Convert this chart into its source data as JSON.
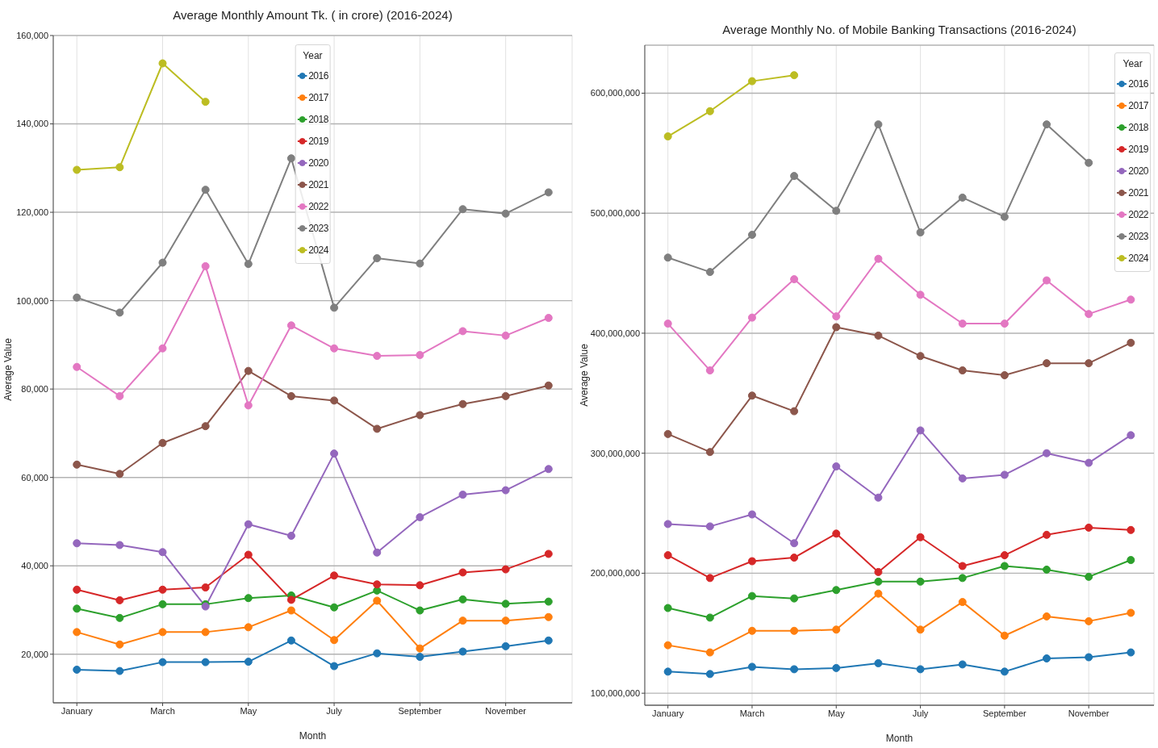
{
  "chart_data": [
    {
      "type": "line",
      "title": "Average Monthly Amount Tk. ( in crore) (2016-2024)",
      "xlabel": "Month",
      "ylabel": "Average Value",
      "legend_title": "Year",
      "categories": [
        "January",
        null,
        "March",
        null,
        "May",
        null,
        "July",
        null,
        "September",
        null,
        "November",
        null
      ],
      "ylim": [
        9000,
        160000
      ],
      "yticks": [
        {
          "value": 20000,
          "label": "20,000"
        },
        {
          "value": 40000,
          "label": "40,000"
        },
        {
          "value": 60000,
          "label": "60,000"
        },
        {
          "value": 80000,
          "label": "80,000"
        },
        {
          "value": 100000,
          "label": "100,000"
        },
        {
          "value": 120000,
          "label": "120,000"
        },
        {
          "value": 140000,
          "label": "140,000"
        },
        {
          "value": 160000,
          "label": "160,000"
        }
      ],
      "grid": true,
      "legend": "top",
      "marker": "circle",
      "line_style": "solid",
      "series": [
        {
          "name": "2016",
          "color": "#1f77b4",
          "values": [
            16500,
            16200,
            18200,
            18200,
            18300,
            23100,
            17300,
            20200,
            19400,
            20600,
            21800,
            23100
          ]
        },
        {
          "name": "2017",
          "color": "#ff7f0e",
          "values": [
            25000,
            22200,
            25000,
            25000,
            26100,
            29900,
            23200,
            32100,
            21300,
            27600,
            27600,
            28400
          ]
        },
        {
          "name": "2018",
          "color": "#2ca02c",
          "values": [
            30300,
            28200,
            31300,
            31300,
            32700,
            33300,
            30600,
            34400,
            29900,
            32400,
            31400,
            31900
          ]
        },
        {
          "name": "2019",
          "color": "#d62728",
          "values": [
            34600,
            32200,
            34600,
            35100,
            42500,
            32300,
            37800,
            35800,
            35600,
            38500,
            39200,
            42700
          ]
        },
        {
          "name": "2020",
          "color": "#9467bd",
          "values": [
            45100,
            44700,
            43100,
            30800,
            49400,
            46800,
            65400,
            43000,
            51000,
            56100,
            57100,
            61900
          ]
        },
        {
          "name": "2021",
          "color": "#8c564b",
          "values": [
            62900,
            60800,
            67800,
            71600,
            84100,
            78400,
            77400,
            71000,
            74100,
            76600,
            78400,
            80800
          ]
        },
        {
          "name": "2022",
          "color": "#e377c2",
          "values": [
            85000,
            78400,
            89200,
            107800,
            76300,
            94400,
            89200,
            87500,
            87700,
            93100,
            92100,
            96100
          ]
        },
        {
          "name": "2023",
          "color": "#7f7f7f",
          "values": [
            100700,
            97300,
            108600,
            125100,
            108300,
            132200,
            98400,
            109600,
            108400,
            120700,
            119700,
            124500
          ]
        },
        {
          "name": "2024",
          "color": "#bcbd22",
          "values": [
            129600,
            130200,
            153700,
            145000,
            null,
            null,
            null,
            null,
            null,
            null,
            null,
            null
          ]
        }
      ]
    },
    {
      "type": "line",
      "title": "Average Monthly No. of Mobile Banking Transactions (2016-2024)",
      "xlabel": "Month",
      "ylabel": "Average Value",
      "legend_title": "Year",
      "categories": [
        "January",
        null,
        "March",
        null,
        "May",
        null,
        "July",
        null,
        "September",
        null,
        "November",
        null
      ],
      "ylim": [
        90000000,
        640000000
      ],
      "yticks": [
        {
          "value": 100000000,
          "label": "100,000,000"
        },
        {
          "value": 200000000,
          "label": "200,000,000"
        },
        {
          "value": 300000000,
          "label": "300,000,000"
        },
        {
          "value": 400000000,
          "label": "400,000,000"
        },
        {
          "value": 500000000,
          "label": "500,000,000"
        },
        {
          "value": 600000000,
          "label": "600,000,000"
        }
      ],
      "grid": true,
      "legend": "top right",
      "marker": "circle",
      "line_style": "solid",
      "series": [
        {
          "name": "2016",
          "color": "#1f77b4",
          "values": [
            118000000,
            116000000,
            122000000,
            120000000,
            121000000,
            125000000,
            120000000,
            124000000,
            118000000,
            129000000,
            130000000,
            134000000
          ]
        },
        {
          "name": "2017",
          "color": "#ff7f0e",
          "values": [
            140000000,
            134000000,
            152000000,
            152000000,
            153000000,
            183000000,
            153000000,
            176000000,
            148000000,
            164000000,
            160000000,
            167000000
          ]
        },
        {
          "name": "2018",
          "color": "#2ca02c",
          "values": [
            171000000,
            163000000,
            181000000,
            179000000,
            186000000,
            193000000,
            193000000,
            196000000,
            206000000,
            203000000,
            197000000,
            211000000
          ]
        },
        {
          "name": "2019",
          "color": "#d62728",
          "values": [
            215000000,
            196000000,
            210000000,
            213000000,
            233000000,
            201000000,
            230000000,
            206000000,
            215000000,
            232000000,
            238000000,
            236000000
          ]
        },
        {
          "name": "2020",
          "color": "#9467bd",
          "values": [
            241000000,
            239000000,
            249000000,
            225000000,
            289000000,
            263000000,
            319000000,
            279000000,
            282000000,
            300000000,
            292000000,
            315000000
          ]
        },
        {
          "name": "2021",
          "color": "#8c564b",
          "values": [
            316000000,
            301000000,
            348000000,
            335000000,
            405000000,
            398000000,
            381000000,
            369000000,
            365000000,
            375000000,
            375000000,
            392000000
          ]
        },
        {
          "name": "2022",
          "color": "#e377c2",
          "values": [
            408000000,
            369000000,
            413000000,
            445000000,
            414000000,
            462000000,
            432000000,
            408000000,
            408000000,
            444000000,
            416000000,
            428000000
          ]
        },
        {
          "name": "2023",
          "color": "#7f7f7f",
          "values": [
            463000000,
            451000000,
            482000000,
            531000000,
            502000000,
            574000000,
            484000000,
            513000000,
            497000000,
            574000000,
            542000000,
            null
          ]
        },
        {
          "name": "2024",
          "color": "#bcbd22",
          "values": [
            564000000,
            585000000,
            610000000,
            615000000,
            null,
            null,
            null,
            null,
            null,
            null,
            null,
            null
          ]
        }
      ]
    }
  ]
}
